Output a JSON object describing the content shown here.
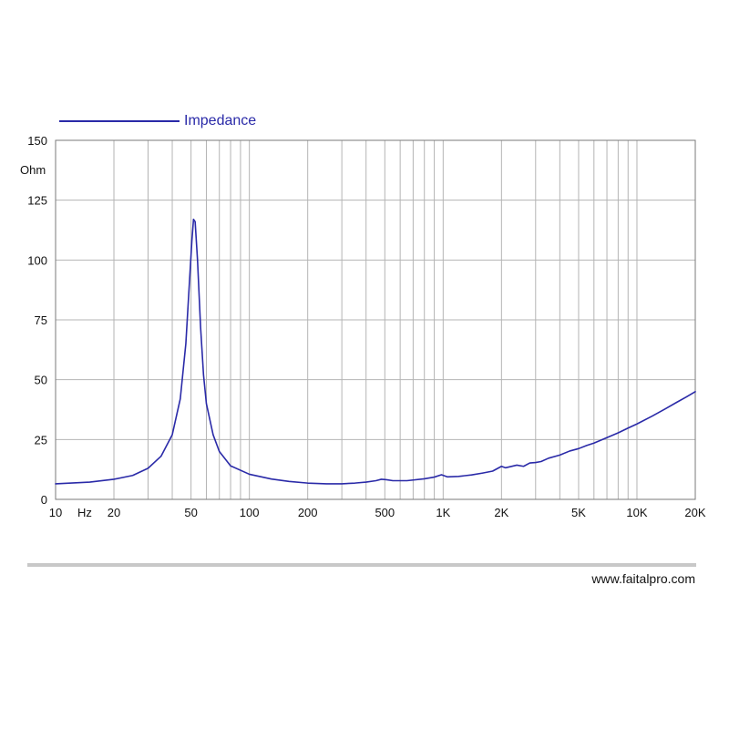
{
  "chart_data": {
    "type": "line",
    "legend_position": "top-left",
    "grid": true,
    "xscale": "log",
    "xlim": [
      10,
      20000
    ],
    "ylim": [
      0,
      150
    ],
    "ylabel": "Ohm",
    "xunit": "Hz",
    "y_ticks": [
      {
        "value": 0,
        "label": "0"
      },
      {
        "value": 25,
        "label": "25"
      },
      {
        "value": 50,
        "label": "50"
      },
      {
        "value": 75,
        "label": "75"
      },
      {
        "value": 100,
        "label": "100"
      },
      {
        "value": 125,
        "label": "125"
      },
      {
        "value": 150,
        "label": "150"
      }
    ],
    "x_ticks": [
      {
        "value": 10,
        "label": "10"
      },
      {
        "value": 20,
        "label": "20"
      },
      {
        "value": 50,
        "label": "50"
      },
      {
        "value": 100,
        "label": "100"
      },
      {
        "value": 200,
        "label": "200"
      },
      {
        "value": 500,
        "label": "500"
      },
      {
        "value": 1000,
        "label": "1K"
      },
      {
        "value": 2000,
        "label": "2K"
      },
      {
        "value": 5000,
        "label": "5K"
      },
      {
        "value": 10000,
        "label": "10K"
      },
      {
        "value": 20000,
        "label": "20K"
      }
    ],
    "series": [
      {
        "name": "Impedance",
        "color": "#2a2aa8",
        "points": [
          [
            10,
            6.5
          ],
          [
            15,
            7.2
          ],
          [
            20,
            8.4
          ],
          [
            25,
            10
          ],
          [
            30,
            13
          ],
          [
            35,
            18
          ],
          [
            40,
            27
          ],
          [
            44,
            42
          ],
          [
            47,
            65
          ],
          [
            49,
            90
          ],
          [
            50.5,
            108
          ],
          [
            51.5,
            117
          ],
          [
            52.5,
            116
          ],
          [
            54,
            100
          ],
          [
            56,
            72
          ],
          [
            58,
            52
          ],
          [
            60,
            40
          ],
          [
            65,
            27
          ],
          [
            70,
            20
          ],
          [
            80,
            14
          ],
          [
            100,
            10.5
          ],
          [
            130,
            8.5
          ],
          [
            160,
            7.5
          ],
          [
            200,
            6.8
          ],
          [
            250,
            6.5
          ],
          [
            300,
            6.5
          ],
          [
            350,
            6.8
          ],
          [
            400,
            7.2
          ],
          [
            450,
            7.8
          ],
          [
            480,
            8.4
          ],
          [
            510,
            8.2
          ],
          [
            550,
            7.8
          ],
          [
            650,
            7.8
          ],
          [
            800,
            8.6
          ],
          [
            900,
            9.3
          ],
          [
            980,
            10.3
          ],
          [
            1050,
            9.4
          ],
          [
            1200,
            9.6
          ],
          [
            1400,
            10.2
          ],
          [
            1600,
            11
          ],
          [
            1800,
            11.8
          ],
          [
            2000,
            13.8
          ],
          [
            2100,
            13.2
          ],
          [
            2400,
            14.3
          ],
          [
            2600,
            13.8
          ],
          [
            2800,
            15.2
          ],
          [
            3000,
            15.4
          ],
          [
            3200,
            15.8
          ],
          [
            3500,
            17.2
          ],
          [
            4000,
            18.5
          ],
          [
            4500,
            20.2
          ],
          [
            5000,
            21.2
          ],
          [
            5500,
            22.5
          ],
          [
            6000,
            23.5
          ],
          [
            7000,
            25.8
          ],
          [
            8000,
            27.8
          ],
          [
            9000,
            29.8
          ],
          [
            10000,
            31.5
          ],
          [
            12000,
            34.8
          ],
          [
            14000,
            37.8
          ],
          [
            16000,
            40.5
          ],
          [
            18000,
            42.8
          ],
          [
            20000,
            45
          ]
        ]
      }
    ]
  },
  "footer": {
    "url": "www.faitalpro.com"
  }
}
